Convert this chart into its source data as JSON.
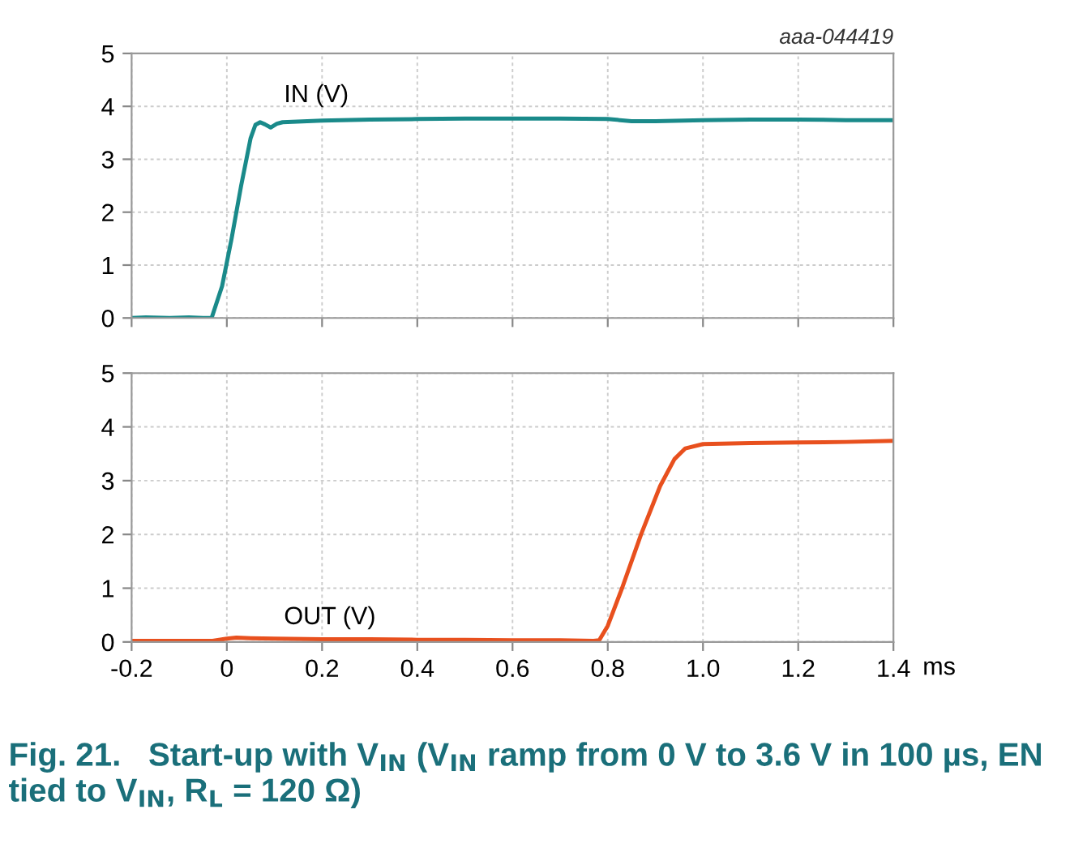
{
  "chart_data": [
    {
      "type": "line",
      "annotations": [
        "aaa-044419"
      ],
      "xlim": [
        -0.2,
        1.4
      ],
      "xticks": [
        -0.2,
        0,
        0.2,
        0.4,
        0.6,
        0.8,
        1.0,
        1.2,
        1.4
      ],
      "ylim": [
        0,
        5
      ],
      "yticks": [
        0,
        1,
        2,
        3,
        4,
        5
      ],
      "grid": true,
      "tick_labels": "y",
      "line_style": "solid",
      "series": [
        {
          "name": "IN (V)",
          "color": "#1a8a8a",
          "x": [
            -0.2,
            -0.17,
            -0.12,
            -0.08,
            -0.05,
            -0.032,
            -0.01,
            0.01,
            0.03,
            0.05,
            0.06,
            0.07,
            0.08,
            0.092,
            0.105,
            0.117,
            0.2,
            0.3,
            0.4,
            0.5,
            0.6,
            0.7,
            0.8,
            0.85,
            0.9,
            1.0,
            1.1,
            1.2,
            1.3,
            1.4
          ],
          "values": [
            0.0,
            0.01,
            0.0,
            0.01,
            0.0,
            0.0,
            0.6,
            1.5,
            2.5,
            3.4,
            3.65,
            3.7,
            3.66,
            3.6,
            3.67,
            3.7,
            3.73,
            3.75,
            3.76,
            3.77,
            3.77,
            3.77,
            3.76,
            3.72,
            3.72,
            3.74,
            3.75,
            3.75,
            3.74,
            3.74
          ]
        }
      ]
    },
    {
      "type": "line",
      "xlabel": "ms",
      "annotations": [
        "Fig. 21.   Start-up with V$_{IN}$ (V$_{IN}$ ramp from 0 V to 3.6 V in 100 µs, EN tied to V$_{IN}$, R$_{L}$ = 120 Ω)"
      ],
      "xlim": [
        -0.2,
        1.4
      ],
      "xticks": [
        {
          "value": -0.2,
          "label": "-0.2"
        },
        0,
        0.2,
        0.4,
        0.6,
        0.8,
        {
          "value": 1.0,
          "label": "1.0"
        },
        1.2,
        1.4
      ],
      "ylim": [
        0,
        5
      ],
      "yticks": [
        0,
        1,
        2,
        3,
        4,
        5
      ],
      "grid": true,
      "line_style": "solid",
      "series": [
        {
          "name": "OUT (V)",
          "color": "#e8501e",
          "x": [
            -0.2,
            -0.1,
            -0.03,
            0.0,
            0.02,
            0.05,
            0.1,
            0.2,
            0.3,
            0.4,
            0.5,
            0.6,
            0.7,
            0.77,
            0.782,
            0.8,
            0.83,
            0.87,
            0.91,
            0.94,
            0.963,
            1.0,
            1.1,
            1.2,
            1.3,
            1.4
          ],
          "values": [
            0.02,
            0.02,
            0.02,
            0.06,
            0.08,
            0.07,
            0.06,
            0.05,
            0.05,
            0.04,
            0.04,
            0.03,
            0.03,
            0.02,
            0.03,
            0.3,
            1.0,
            2.0,
            2.9,
            3.4,
            3.6,
            3.68,
            3.7,
            3.71,
            3.72,
            3.74
          ]
        }
      ]
    }
  ]
}
